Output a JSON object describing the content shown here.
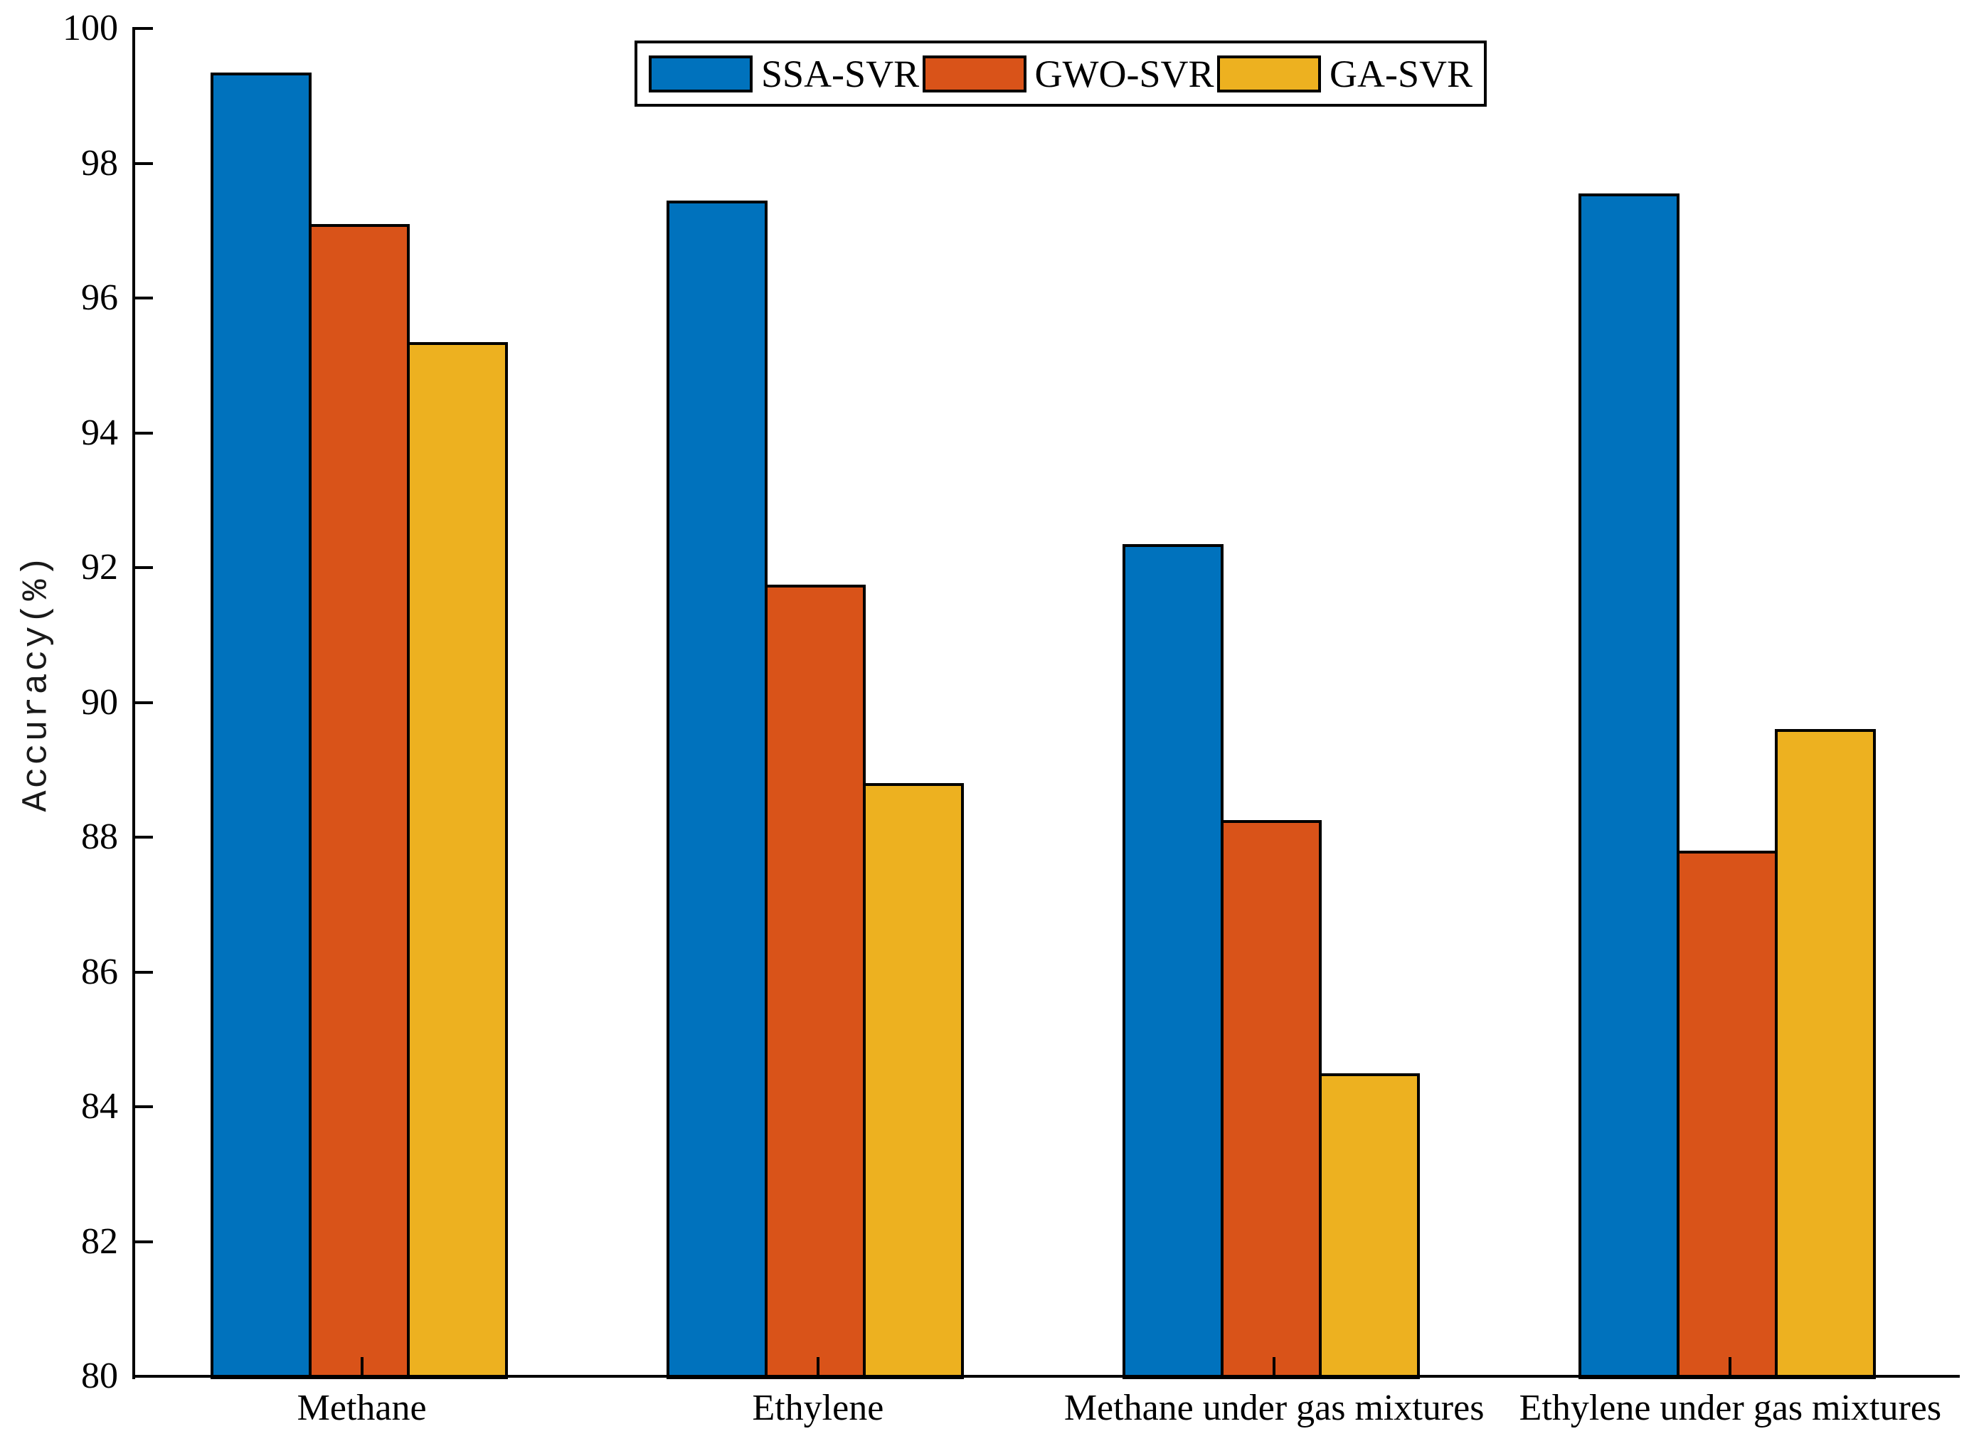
{
  "figure": {
    "background_color": "#ffffff",
    "axis_color": "#000000",
    "text_color": "#000000"
  },
  "chart_data": {
    "type": "bar",
    "title": "",
    "xlabel": "",
    "ylabel": "Accuracy(%)",
    "ylim": [
      80,
      100
    ],
    "ytick_step": 2,
    "yticks": [
      80,
      82,
      84,
      86,
      88,
      90,
      92,
      94,
      96,
      98,
      100
    ],
    "grid": false,
    "bar_outline_color": "#000000",
    "categories": [
      "Methane",
      "Ethylene",
      "Methane under gas mixtures",
      "Ethylene under gas mixtures"
    ],
    "series": [
      {
        "name": "SSA-SVR",
        "color": "#0072BD",
        "values": [
          99.35,
          97.45,
          92.35,
          97.55
        ]
      },
      {
        "name": "GWO-SVR",
        "color": "#D95319",
        "values": [
          97.1,
          91.75,
          88.25,
          87.8
        ]
      },
      {
        "name": "GA-SVR",
        "color": "#EDB120",
        "values": [
          95.35,
          88.8,
          84.5,
          89.6
        ]
      }
    ],
    "legend": {
      "position": "top-center",
      "orientation": "horizontal",
      "entries": [
        "SSA-SVR",
        "GWO-SVR",
        "GA-SVR"
      ]
    }
  }
}
